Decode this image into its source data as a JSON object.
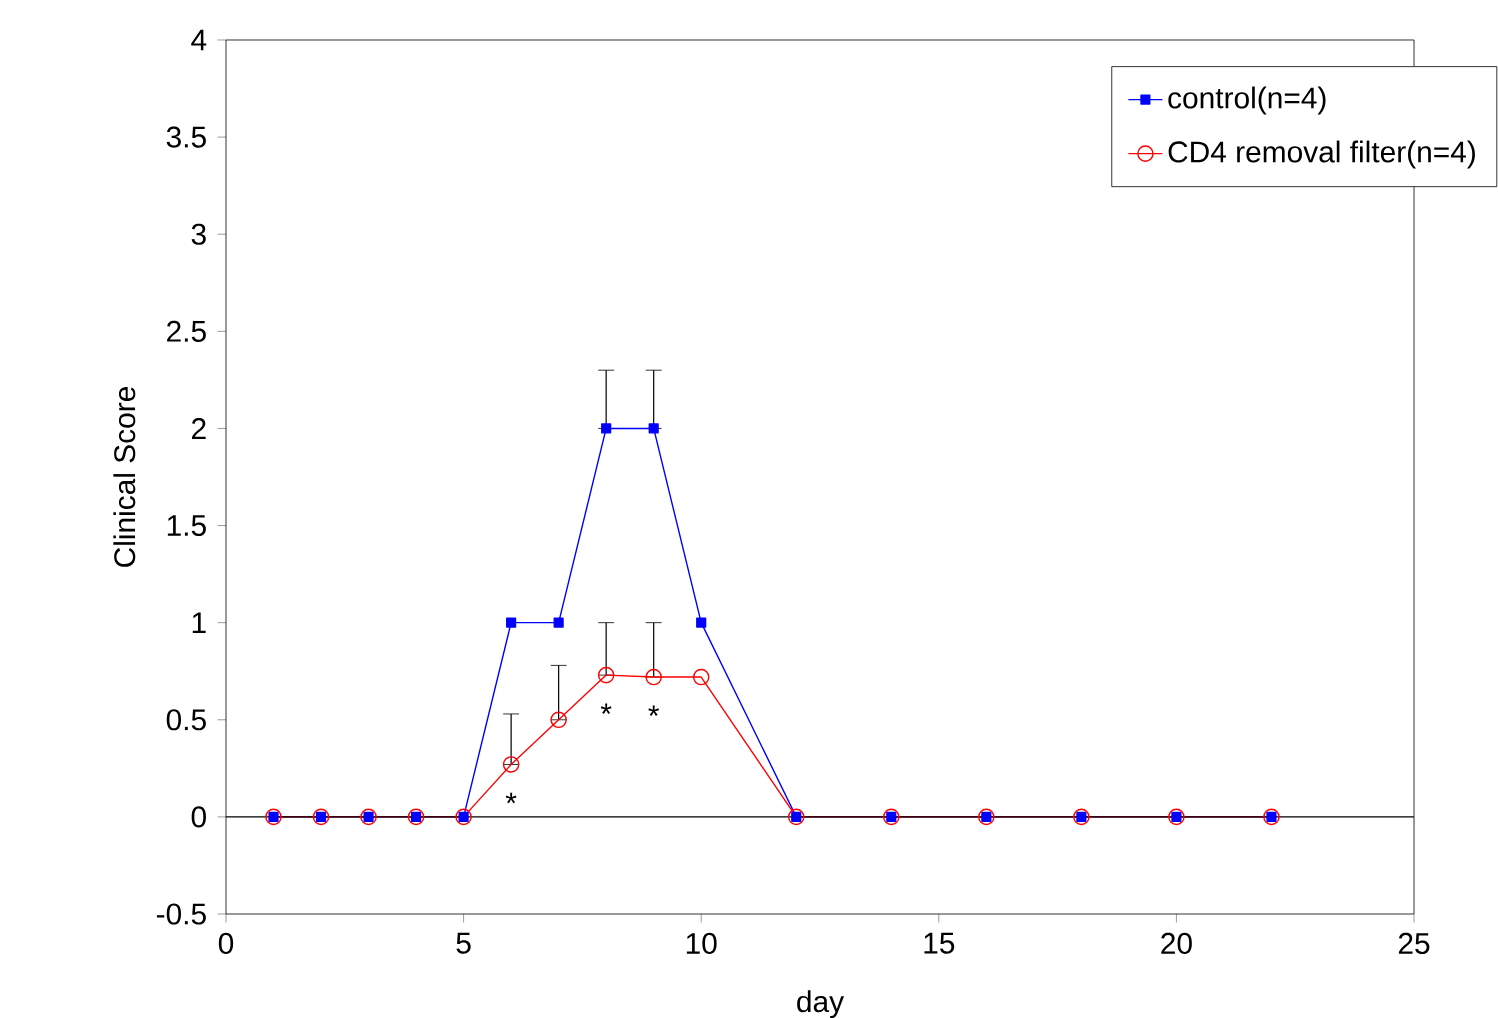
{
  "chart_data": {
    "type": "line",
    "xlabel": "day",
    "ylabel": "Clinical Score",
    "xlim": [
      0,
      25
    ],
    "xticks": [
      0,
      5,
      10,
      15,
      20,
      25
    ],
    "ylim": [
      -0.5,
      4
    ],
    "yticks": [
      -0.5,
      0,
      0.5,
      1,
      1.5,
      2,
      2.5,
      3,
      3.5,
      4
    ],
    "grid": false,
    "legend": "top right",
    "ref_lines": [
      {
        "axis": "y",
        "value": 0,
        "color": "#000000"
      }
    ],
    "annotations": [
      {
        "text": "*",
        "x": 6,
        "y": 0.27
      },
      {
        "text": "*",
        "x": 8,
        "y": 0.73
      },
      {
        "text": "*",
        "x": 9,
        "y": 0.72
      }
    ],
    "series": [
      {
        "name": "control(n=4)",
        "color": "#0000ff",
        "marker": "square",
        "x": [
          1,
          2,
          3,
          4,
          5,
          6,
          7,
          8,
          9,
          10,
          12,
          14,
          16,
          18,
          20,
          22
        ],
        "values": [
          0,
          0,
          0,
          0,
          0,
          1,
          1,
          2,
          2,
          1,
          0,
          0,
          0,
          0,
          0,
          0
        ],
        "errors": [
          null,
          null,
          null,
          null,
          null,
          null,
          null,
          [
            2,
            2.3
          ],
          [
            2,
            2.3
          ],
          null,
          null,
          null,
          null,
          null,
          null,
          null
        ]
      },
      {
        "name": "CD4 removal filter(n=4)",
        "color": "#ff0000",
        "marker": "circle",
        "x": [
          1,
          2,
          3,
          4,
          5,
          6,
          7,
          8,
          9,
          10,
          12,
          14,
          16,
          18,
          20,
          22
        ],
        "values": [
          0,
          0,
          0,
          0,
          0,
          0.27,
          0.5,
          0.73,
          0.72,
          0.72,
          0,
          0,
          0,
          0,
          0,
          0
        ],
        "errors": [
          null,
          null,
          null,
          null,
          null,
          [
            0.27,
            0.53
          ],
          [
            0.5,
            0.78
          ],
          [
            0.73,
            1
          ],
          [
            0.72,
            1
          ],
          null,
          null,
          null,
          null,
          null,
          null,
          null
        ]
      }
    ]
  }
}
